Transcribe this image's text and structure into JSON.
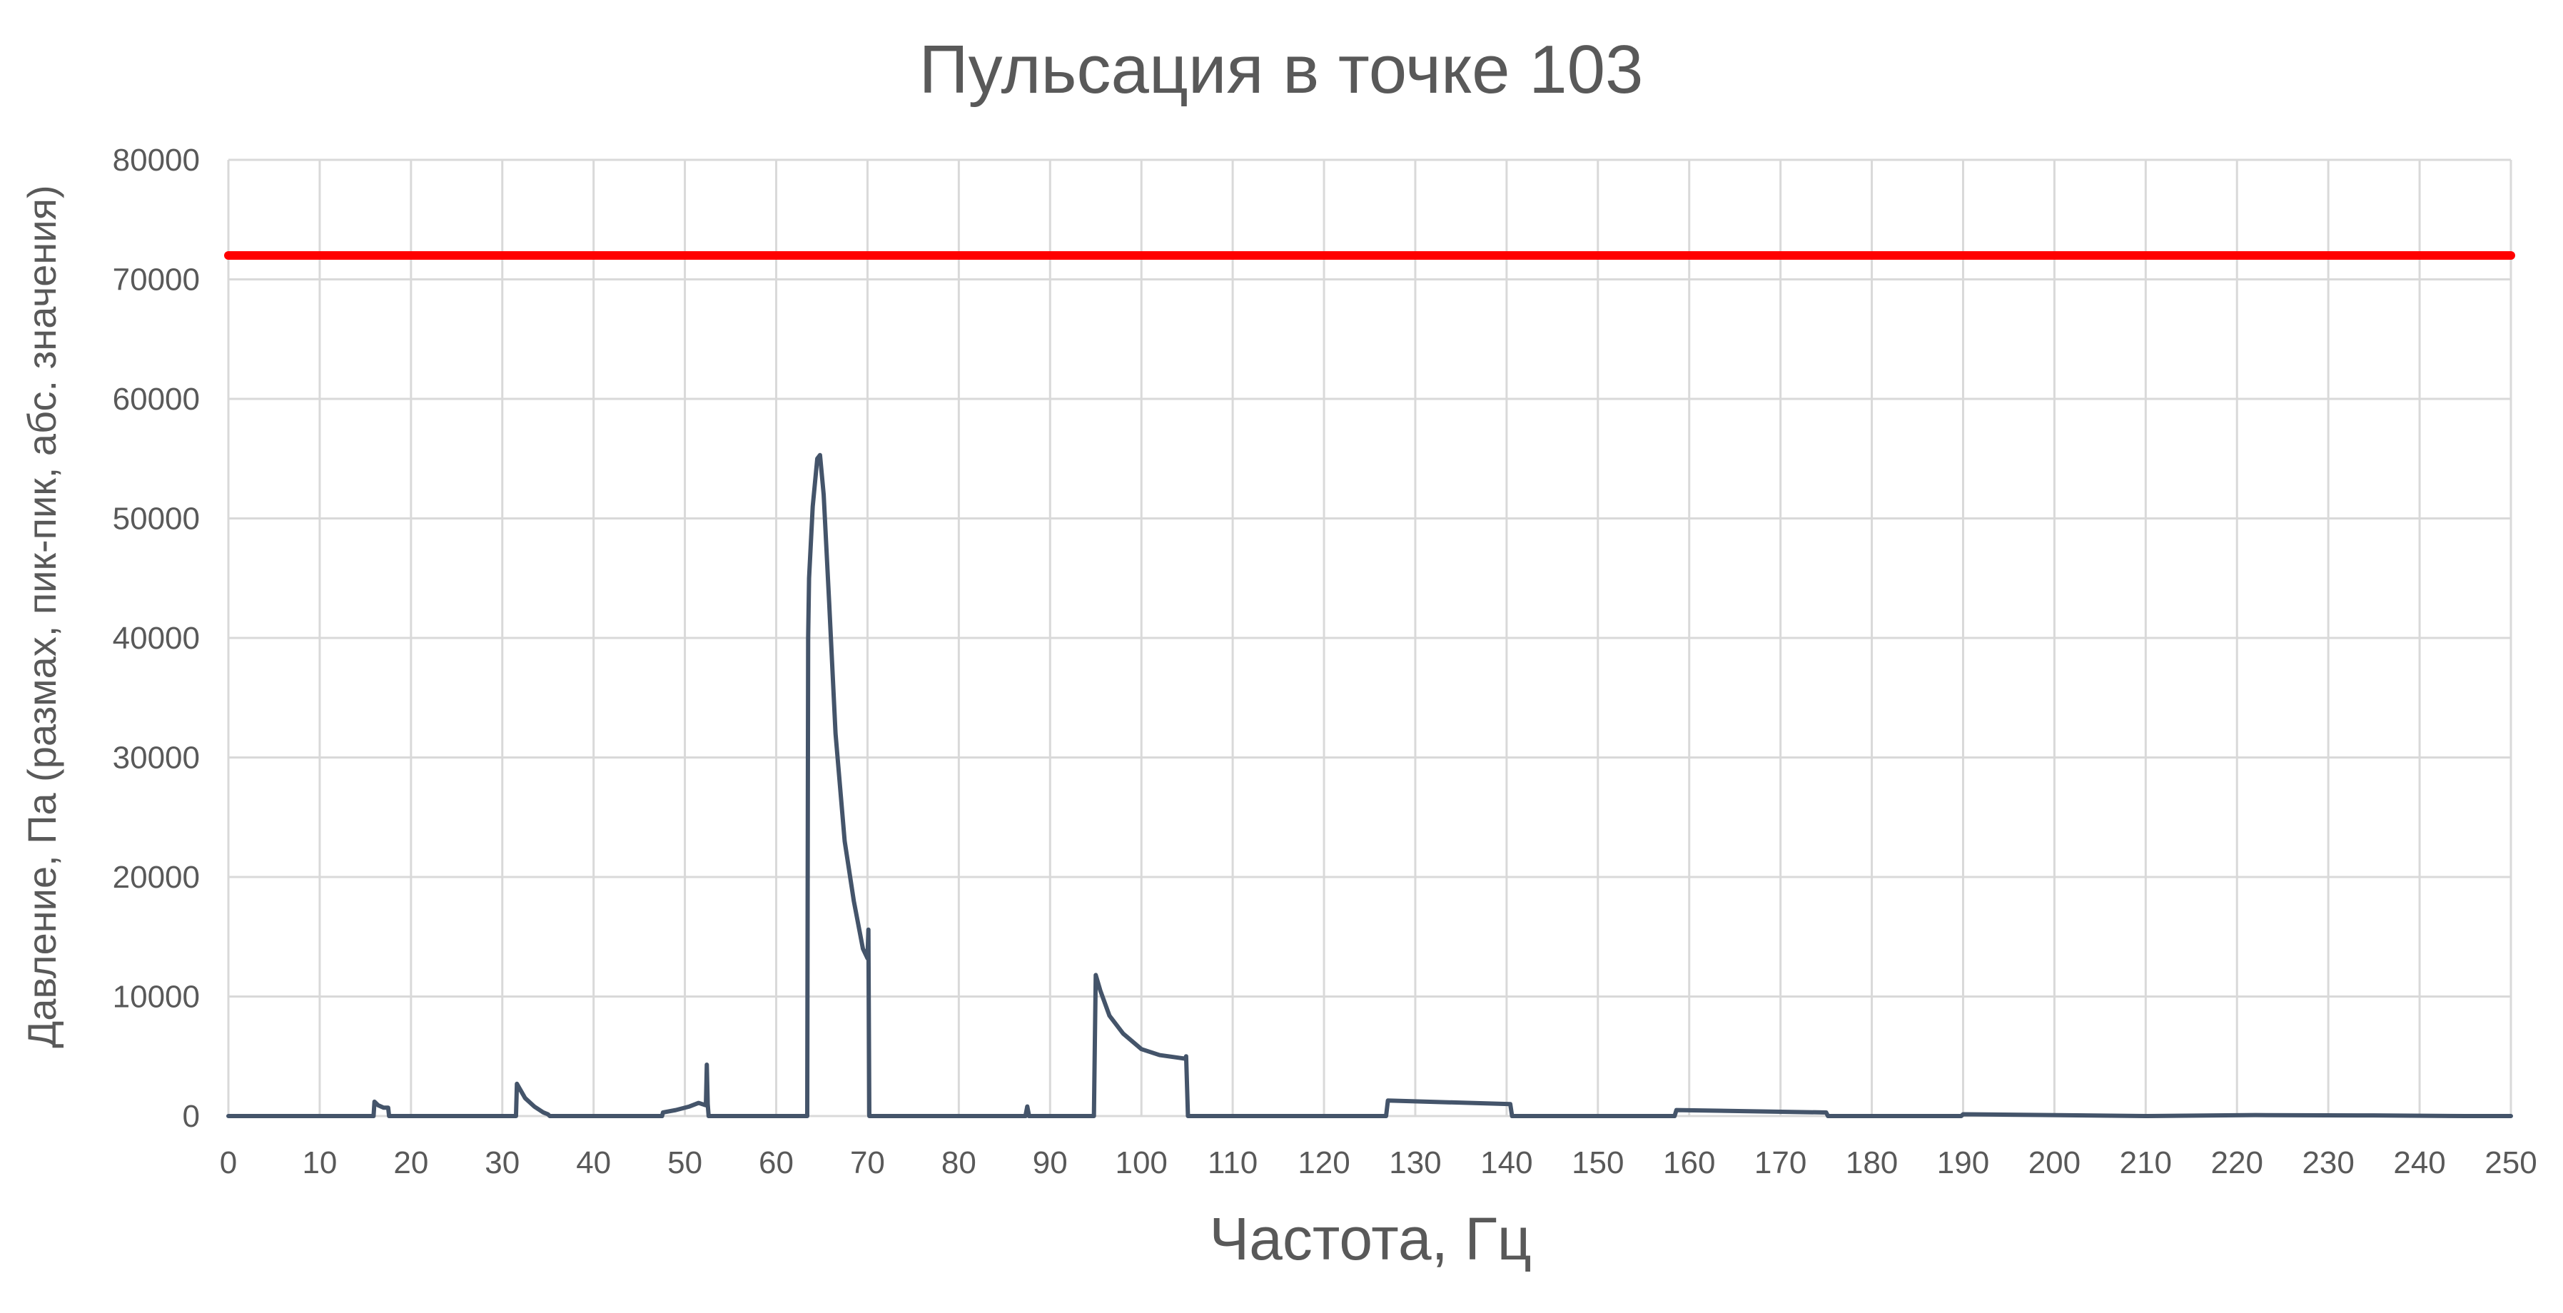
{
  "chart_data": {
    "type": "line",
    "title": "Пульсация в точке 103",
    "xlabel": "Частота, Гц",
    "ylabel": "Давление, Па (размах, пик-пик, абс. значения)",
    "xlim": [
      0,
      250
    ],
    "ylim": [
      0,
      80000
    ],
    "x_ticks": [
      "0",
      "10",
      "20",
      "30",
      "40",
      "50",
      "60",
      "70",
      "80",
      "90",
      "100",
      "110",
      "120",
      "130",
      "140",
      "150",
      "160",
      "170",
      "180",
      "190",
      "200",
      "210",
      "220",
      "230",
      "240",
      "250"
    ],
    "y_ticks": [
      "0",
      "10000",
      "20000",
      "30000",
      "40000",
      "50000",
      "60000",
      "70000",
      "80000"
    ],
    "grid": true,
    "legend": "none",
    "series": [
      {
        "color": "#44546a",
        "x": [
          0,
          15.9,
          16.0,
          16.4,
          17.0,
          17.5,
          17.6,
          17.7,
          31.5,
          31.6,
          31.9,
          32.5,
          33.5,
          34.5,
          35.0,
          35.2,
          47.5,
          47.6,
          49.0,
          50.5,
          51.5,
          52.3,
          52.4,
          52.5,
          52.6,
          52.7,
          63.4,
          63.5,
          63.6,
          64.0,
          64.5,
          64.8,
          65.2,
          65.8,
          66.5,
          67.5,
          68.5,
          69.5,
          70.0,
          70.1,
          70.2,
          80.0,
          87.3,
          87.5,
          87.7,
          94.8,
          94.9,
          95.0,
          95.5,
          96.5,
          98.0,
          100.0,
          102.0,
          104.8,
          104.9,
          105.1,
          111.0,
          122.0,
          126.8,
          127.0,
          140.4,
          140.6,
          158.4,
          158.6,
          175.0,
          175.2,
          189.8,
          190.0,
          210.0,
          210.2,
          222.0,
          235.0,
          245.0,
          250.0
        ],
        "y": [
          0,
          0,
          1200,
          900,
          700,
          700,
          0,
          0,
          0,
          2700,
          2300,
          1500,
          800,
          300,
          150,
          0,
          0,
          300,
          500,
          800,
          1100,
          900,
          4300,
          1000,
          0,
          0,
          0,
          40000,
          45000,
          51000,
          55000,
          55300,
          52000,
          43000,
          32000,
          23000,
          18000,
          14000,
          13200,
          15600,
          0,
          0,
          0,
          800,
          0,
          0,
          6000,
          11800,
          10500,
          8400,
          6900,
          5600,
          5100,
          4800,
          5000,
          0,
          0,
          0,
          0,
          1300,
          1000,
          0,
          0,
          500,
          300,
          0,
          0,
          150,
          0,
          0,
          80,
          50,
          0,
          0
        ]
      },
      {
        "color": "#ff0000",
        "x": [
          0,
          250
        ],
        "y": [
          72000,
          72000
        ]
      }
    ]
  }
}
